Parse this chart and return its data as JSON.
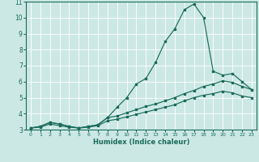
{
  "xlabel": "Humidex (Indice chaleur)",
  "bg_color": "#cce8e4",
  "line_color": "#1a6b5a",
  "grid_color": "#ffffff",
  "xlim": [
    -0.5,
    23.5
  ],
  "ylim": [
    3,
    11
  ],
  "yticks": [
    3,
    4,
    5,
    6,
    7,
    8,
    9,
    10,
    11
  ],
  "xticks": [
    0,
    1,
    2,
    3,
    4,
    5,
    6,
    7,
    8,
    9,
    10,
    11,
    12,
    13,
    14,
    15,
    16,
    17,
    18,
    19,
    20,
    21,
    22,
    23
  ],
  "line1_x": [
    0,
    1,
    2,
    3,
    4,
    5,
    6,
    7,
    8,
    9,
    10,
    11,
    12,
    13,
    14,
    15,
    16,
    17,
    18,
    19,
    20,
    21,
    22,
    23
  ],
  "line1_y": [
    3.1,
    3.2,
    3.45,
    3.35,
    3.2,
    3.1,
    3.2,
    3.3,
    3.75,
    4.4,
    5.0,
    5.85,
    6.2,
    7.2,
    8.5,
    9.3,
    10.5,
    10.85,
    10.0,
    6.65,
    6.4,
    6.5,
    6.0,
    5.5
  ],
  "line2_x": [
    0,
    1,
    2,
    3,
    4,
    5,
    6,
    7,
    8,
    9,
    10,
    11,
    12,
    13,
    14,
    15,
    16,
    17,
    18,
    19,
    20,
    21,
    22,
    23
  ],
  "line2_y": [
    3.1,
    3.2,
    3.45,
    3.35,
    3.2,
    3.1,
    3.2,
    3.3,
    3.75,
    3.85,
    4.05,
    4.25,
    4.45,
    4.6,
    4.8,
    5.0,
    5.25,
    5.45,
    5.7,
    5.85,
    6.05,
    5.95,
    5.7,
    5.5
  ],
  "line3_x": [
    0,
    1,
    2,
    3,
    4,
    5,
    6,
    7,
    8,
    9,
    10,
    11,
    12,
    13,
    14,
    15,
    16,
    17,
    18,
    19,
    20,
    21,
    22,
    23
  ],
  "line3_y": [
    3.1,
    3.15,
    3.35,
    3.25,
    3.15,
    3.1,
    3.15,
    3.25,
    3.55,
    3.65,
    3.8,
    3.95,
    4.1,
    4.25,
    4.4,
    4.55,
    4.8,
    5.0,
    5.15,
    5.25,
    5.4,
    5.3,
    5.1,
    5.0
  ]
}
